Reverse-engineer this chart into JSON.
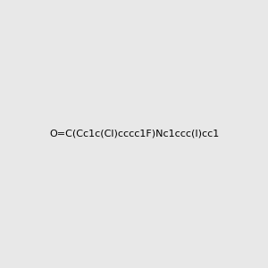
{
  "smiles": "O=C(Cc1c(Cl)cccc1F)Nc1ccc(I)cc1",
  "image_size": 300,
  "background_color": "#e8e8e8",
  "title": ""
}
